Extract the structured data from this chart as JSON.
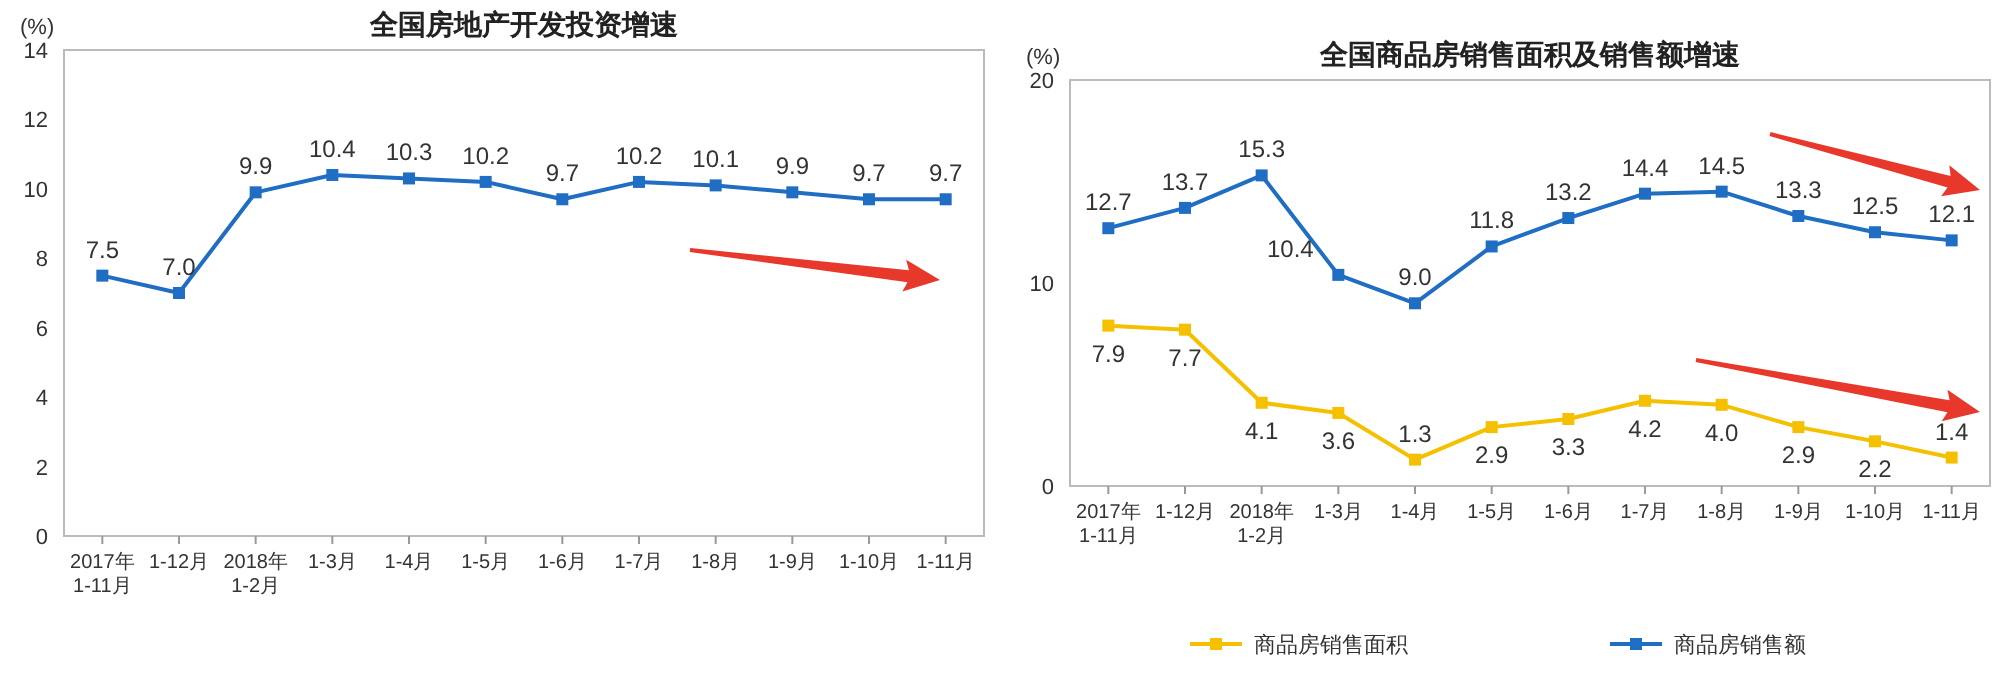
{
  "chart_data": [
    {
      "type": "line",
      "title": "全国房地产开发投资增速",
      "ylabel": "(%)",
      "categories": [
        "2017年\n1-11月",
        "1-12月",
        "2018年\n1-2月",
        "1-3月",
        "1-4月",
        "1-5月",
        "1-6月",
        "1-7月",
        "1-8月",
        "1-9月",
        "1-10月",
        "1-11月"
      ],
      "series": [
        {
          "color": "#1f6ec4",
          "values": [
            7.5,
            7.0,
            9.9,
            10.4,
            10.3,
            10.2,
            9.7,
            10.2,
            10.1,
            9.9,
            9.7,
            9.7
          ],
          "value_labels": [
            "7.5",
            "7.0",
            "9.9",
            "10.4",
            "10.3",
            "10.2",
            "9.7",
            "10.2",
            "10.1",
            "9.9",
            "9.7",
            "9.7"
          ]
        }
      ],
      "ylim": [
        0,
        14
      ],
      "yticks": [
        0,
        2,
        4,
        6,
        8,
        10,
        12,
        14
      ],
      "marker": "square",
      "legend": false
    },
    {
      "type": "line",
      "title": "全国商品房销售面积及销售额增速",
      "ylabel": "(%)",
      "categories": [
        "2017年\n1-11月",
        "1-12月",
        "2018年\n1-2月",
        "1-3月",
        "1-4月",
        "1-5月",
        "1-6月",
        "1-7月",
        "1-8月",
        "1-9月",
        "1-10月",
        "1-11月"
      ],
      "series": [
        {
          "name": "商品房销售面积",
          "color": "#f5c000",
          "values": [
            7.9,
            7.7,
            4.1,
            3.6,
            1.3,
            2.9,
            3.3,
            4.2,
            4.0,
            2.9,
            2.2,
            1.4
          ],
          "value_labels": [
            "7.9",
            "7.7",
            "4.1",
            "3.6",
            "1.3",
            "2.9",
            "3.3",
            "4.2",
            "4.0",
            "2.9",
            "2.2",
            "1.4"
          ]
        },
        {
          "name": "商品房销售额",
          "color": "#1f6ec4",
          "values": [
            12.7,
            13.7,
            15.3,
            10.4,
            9.0,
            11.8,
            13.2,
            14.4,
            14.5,
            13.3,
            12.5,
            12.1
          ],
          "value_labels": [
            "12.7",
            "13.7",
            "15.3",
            "10.4",
            "9.0",
            "11.8",
            "13.2",
            "14.4",
            "14.5",
            "13.3",
            "12.5",
            "12.1"
          ]
        }
      ],
      "ylim": [
        0,
        20
      ],
      "yticks": [
        0,
        10,
        20
      ],
      "marker": "square",
      "legend": "bottom"
    }
  ]
}
